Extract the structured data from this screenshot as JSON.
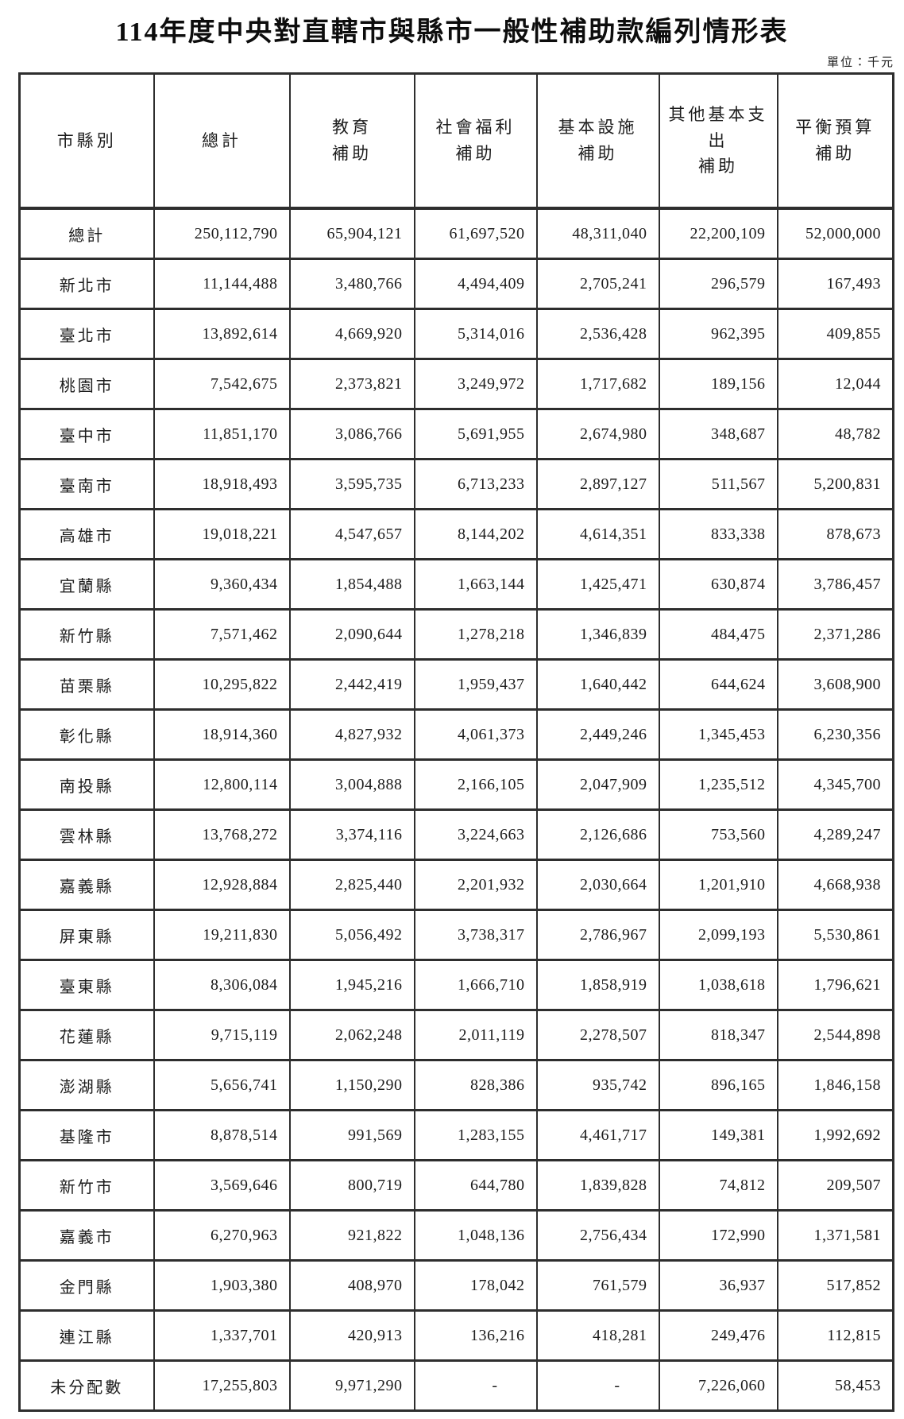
{
  "title": "114年度中央對直轄市與縣市一般性補助款編列情形表",
  "unit_label": "單位：千元",
  "table": {
    "columns": [
      {
        "lines": [
          "市縣別"
        ]
      },
      {
        "lines": [
          "總計"
        ]
      },
      {
        "lines": [
          "教育",
          "補助"
        ]
      },
      {
        "lines": [
          "社會福利",
          "補助"
        ]
      },
      {
        "lines": [
          "基本設施",
          "補助"
        ]
      },
      {
        "lines": [
          "其他基本支出",
          "補助"
        ]
      },
      {
        "lines": [
          "平衡預算",
          "補助"
        ]
      }
    ],
    "rows": [
      {
        "name": "總計",
        "values": [
          "250,112,790",
          "65,904,121",
          "61,697,520",
          "48,311,040",
          "22,200,109",
          "52,000,000"
        ]
      },
      {
        "name": "新北市",
        "values": [
          "11,144,488",
          "3,480,766",
          "4,494,409",
          "2,705,241",
          "296,579",
          "167,493"
        ]
      },
      {
        "name": "臺北市",
        "values": [
          "13,892,614",
          "4,669,920",
          "5,314,016",
          "2,536,428",
          "962,395",
          "409,855"
        ]
      },
      {
        "name": "桃園市",
        "values": [
          "7,542,675",
          "2,373,821",
          "3,249,972",
          "1,717,682",
          "189,156",
          "12,044"
        ]
      },
      {
        "name": "臺中市",
        "values": [
          "11,851,170",
          "3,086,766",
          "5,691,955",
          "2,674,980",
          "348,687",
          "48,782"
        ]
      },
      {
        "name": "臺南市",
        "values": [
          "18,918,493",
          "3,595,735",
          "6,713,233",
          "2,897,127",
          "511,567",
          "5,200,831"
        ]
      },
      {
        "name": "高雄市",
        "values": [
          "19,018,221",
          "4,547,657",
          "8,144,202",
          "4,614,351",
          "833,338",
          "878,673"
        ]
      },
      {
        "name": "宜蘭縣",
        "values": [
          "9,360,434",
          "1,854,488",
          "1,663,144",
          "1,425,471",
          "630,874",
          "3,786,457"
        ]
      },
      {
        "name": "新竹縣",
        "values": [
          "7,571,462",
          "2,090,644",
          "1,278,218",
          "1,346,839",
          "484,475",
          "2,371,286"
        ]
      },
      {
        "name": "苗栗縣",
        "values": [
          "10,295,822",
          "2,442,419",
          "1,959,437",
          "1,640,442",
          "644,624",
          "3,608,900"
        ]
      },
      {
        "name": "彰化縣",
        "values": [
          "18,914,360",
          "4,827,932",
          "4,061,373",
          "2,449,246",
          "1,345,453",
          "6,230,356"
        ]
      },
      {
        "name": "南投縣",
        "values": [
          "12,800,114",
          "3,004,888",
          "2,166,105",
          "2,047,909",
          "1,235,512",
          "4,345,700"
        ]
      },
      {
        "name": "雲林縣",
        "values": [
          "13,768,272",
          "3,374,116",
          "3,224,663",
          "2,126,686",
          "753,560",
          "4,289,247"
        ]
      },
      {
        "name": "嘉義縣",
        "values": [
          "12,928,884",
          "2,825,440",
          "2,201,932",
          "2,030,664",
          "1,201,910",
          "4,668,938"
        ]
      },
      {
        "name": "屏東縣",
        "values": [
          "19,211,830",
          "5,056,492",
          "3,738,317",
          "2,786,967",
          "2,099,193",
          "5,530,861"
        ]
      },
      {
        "name": "臺東縣",
        "values": [
          "8,306,084",
          "1,945,216",
          "1,666,710",
          "1,858,919",
          "1,038,618",
          "1,796,621"
        ]
      },
      {
        "name": "花蓮縣",
        "values": [
          "9,715,119",
          "2,062,248",
          "2,011,119",
          "2,278,507",
          "818,347",
          "2,544,898"
        ]
      },
      {
        "name": "澎湖縣",
        "values": [
          "5,656,741",
          "1,150,290",
          "828,386",
          "935,742",
          "896,165",
          "1,846,158"
        ]
      },
      {
        "name": "基隆市",
        "values": [
          "8,878,514",
          "991,569",
          "1,283,155",
          "4,461,717",
          "149,381",
          "1,992,692"
        ]
      },
      {
        "name": "新竹市",
        "values": [
          "3,569,646",
          "800,719",
          "644,780",
          "1,839,828",
          "74,812",
          "209,507"
        ]
      },
      {
        "name": "嘉義市",
        "values": [
          "6,270,963",
          "921,822",
          "1,048,136",
          "2,756,434",
          "172,990",
          "1,371,581"
        ]
      },
      {
        "name": "金門縣",
        "values": [
          "1,903,380",
          "408,970",
          "178,042",
          "761,579",
          "36,937",
          "517,852"
        ]
      },
      {
        "name": "連江縣",
        "values": [
          "1,337,701",
          "420,913",
          "136,216",
          "418,281",
          "249,476",
          "112,815"
        ]
      },
      {
        "name": "未分配數",
        "values": [
          "17,255,803",
          "9,971,290",
          "-",
          "-",
          "7,226,060",
          "58,453"
        ]
      }
    ]
  }
}
